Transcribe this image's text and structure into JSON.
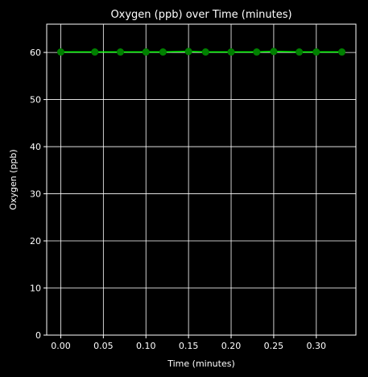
{
  "chart_data": {
    "type": "line",
    "title": "Oxygen (ppb) over Time (minutes)",
    "xlabel": "Time (minutes)",
    "ylabel": "Oxygen (ppb)",
    "xlim": [
      -0.0165,
      0.3465
    ],
    "ylim": [
      0,
      66
    ],
    "xticks": [
      "0.00",
      "0.05",
      "0.10",
      "0.15",
      "0.20",
      "0.25",
      "0.30"
    ],
    "yticks": [
      "0",
      "10",
      "20",
      "30",
      "40",
      "50",
      "60"
    ],
    "grid": true,
    "series": [
      {
        "x": [
          0.0,
          0.04,
          0.07,
          0.1,
          0.12,
          0.15,
          0.17,
          0.2,
          0.23,
          0.25,
          0.28,
          0.3,
          0.33
        ],
        "y": [
          60.1,
          60.1,
          60.1,
          60.1,
          60.1,
          60.2,
          60.1,
          60.1,
          60.1,
          60.2,
          60.1,
          60.1,
          60.1
        ]
      }
    ],
    "line_color": "#00ff00",
    "marker_color": "#008000",
    "background": "#000000",
    "axes_color": "#ffffff"
  }
}
